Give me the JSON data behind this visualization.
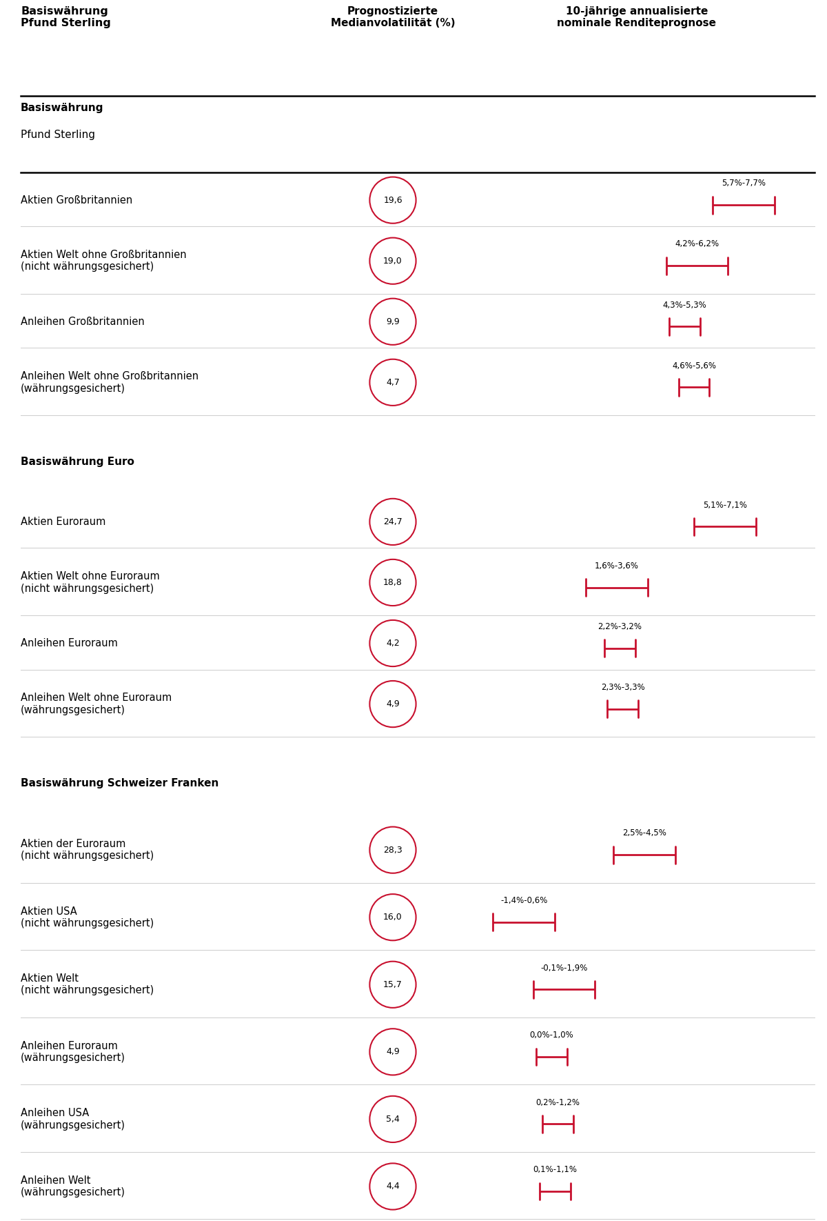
{
  "sections": [
    {
      "header": "Basiswährung\nPfund Sterling",
      "rows": [
        {
          "label": "Aktien Großbritannien",
          "volatility": "19,6",
          "range_low": 5.7,
          "range_high": 7.7,
          "range_label": "5,7%-7,7%"
        },
        {
          "label": "Aktien Welt ohne Großbritannien\n(nicht währungsgesichert)",
          "volatility": "19,0",
          "range_low": 4.2,
          "range_high": 6.2,
          "range_label": "4,2%-6,2%"
        },
        {
          "label": "Anleihen Großbritannien",
          "volatility": "9,9",
          "range_low": 4.3,
          "range_high": 5.3,
          "range_label": "4,3%-5,3%"
        },
        {
          "label": "Anleihen Welt ohne Großbritannien\n(währungsgesichert)",
          "volatility": "4,7",
          "range_low": 4.6,
          "range_high": 5.6,
          "range_label": "4,6%-5,6%"
        }
      ]
    },
    {
      "header": "Basiswährung Euro",
      "rows": [
        {
          "label": "Aktien Euroraum",
          "volatility": "24,7",
          "range_low": 5.1,
          "range_high": 7.1,
          "range_label": "5,1%-7,1%"
        },
        {
          "label": "Aktien Welt ohne Euroraum\n(nicht währungsgesichert)",
          "volatility": "18,8",
          "range_low": 1.6,
          "range_high": 3.6,
          "range_label": "1,6%-3,6%"
        },
        {
          "label": "Anleihen Euroraum",
          "volatility": "4,2",
          "range_low": 2.2,
          "range_high": 3.2,
          "range_label": "2,2%-3,2%"
        },
        {
          "label": "Anleihen Welt ohne Euroraum\n(währungsgesichert)",
          "volatility": "4,9",
          "range_low": 2.3,
          "range_high": 3.3,
          "range_label": "2,3%-3,3%"
        }
      ]
    },
    {
      "header": "Basiswährung Schweizer Franken",
      "rows": [
        {
          "label": "Aktien der Euroraum\n(nicht währungsgesichert)",
          "volatility": "28,3",
          "range_low": 2.5,
          "range_high": 4.5,
          "range_label": "2,5%-4,5%"
        },
        {
          "label": "Aktien USA\n(nicht währungsgesichert)",
          "volatility": "16,0",
          "range_low": -1.4,
          "range_high": 0.6,
          "range_label": "-1,4%-0,6%"
        },
        {
          "label": "Aktien Welt\n(nicht währungsgesichert)",
          "volatility": "15,7",
          "range_low": -0.1,
          "range_high": 1.9,
          "range_label": "-0,1%-1,9%"
        },
        {
          "label": "Anleihen Euroraum\n(währungsgesichert)",
          "volatility": "4,9",
          "range_low": 0.0,
          "range_high": 1.0,
          "range_label": "0,0%-1,0%"
        },
        {
          "label": "Anleihen USA\n(währungsgesichert)",
          "volatility": "5,4",
          "range_low": 0.2,
          "range_high": 1.2,
          "range_label": "0,2%-1,2%"
        },
        {
          "label": "Anleihen Welt\n(währungsgesichert)",
          "volatility": "4,4",
          "range_low": 0.1,
          "range_high": 1.1,
          "range_label": "0,1%-1,1%"
        }
      ]
    }
  ],
  "col_header_left": "Basiswährung\nPfund Sterling",
  "col_header_mid": "Prognostizierte\nMedianvolatilität (%)",
  "col_header_right": "10-jährige annualisierte\nnominale Renditeprognose",
  "accent_color": "#c8102e",
  "text_color": "#000000",
  "separator_color": "#cccccc",
  "background_color": "#ffffff",
  "range_scale_min": -2.5,
  "range_scale_max": 9.0
}
